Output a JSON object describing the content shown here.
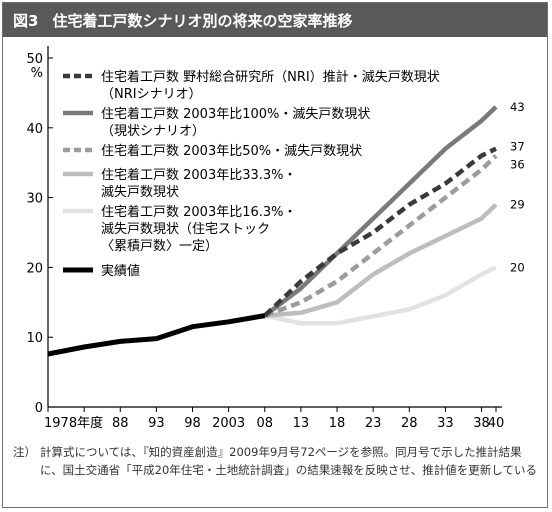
{
  "figure": {
    "number": "図3",
    "title": "住宅着工戸数シナリオ別の将来の空家率推移"
  },
  "chart_data": {
    "type": "line",
    "y_unit": "%",
    "ylim": [
      0,
      50
    ],
    "yticks": [
      0,
      10,
      20,
      30,
      40,
      50
    ],
    "categories": [
      "1978年度",
      "88",
      "93",
      "98",
      "2003",
      "08",
      "13",
      "18",
      "23",
      "28",
      "33",
      "38",
      "40"
    ],
    "x": [
      1978,
      1983,
      1988,
      1993,
      1998,
      2003,
      2008,
      2013,
      2018,
      2023,
      2028,
      2033,
      2038,
      2040
    ],
    "x_tick_years": [
      1978,
      1988,
      1993,
      1998,
      2003,
      2008,
      2013,
      2018,
      2023,
      2028,
      2033,
      2038,
      2040
    ],
    "grid": false,
    "legend_position": "top-left",
    "series": [
      {
        "name": "住宅着工戸数 野村総合研究所（NRI）推計・滅失戸数現状（NRIシナリオ）",
        "legend_lines": [
          "住宅着工戸数 野村総合研究所（NRI）推計・滅失戸数現状",
          "（NRIシナリオ）"
        ],
        "style": "dashed",
        "color": "#3a3a3a",
        "points": [
          [
            2008,
            13.1
          ],
          [
            2013,
            18.0
          ],
          [
            2018,
            22.0
          ],
          [
            2023,
            25.0
          ],
          [
            2028,
            29.0
          ],
          [
            2033,
            32.0
          ],
          [
            2038,
            36.0
          ],
          [
            2040,
            37.0
          ]
        ],
        "end_label": "37"
      },
      {
        "name": "住宅着工戸数 2003年比100%・滅失戸数現状（現状シナリオ）",
        "legend_lines": [
          "住宅着工戸数 2003年比100%・滅失戸数現状",
          "（現状シナリオ）"
        ],
        "style": "solid",
        "color": "#7a7a7a",
        "points": [
          [
            2008,
            13.1
          ],
          [
            2013,
            17.0
          ],
          [
            2018,
            22.0
          ],
          [
            2023,
            27.0
          ],
          [
            2028,
            32.0
          ],
          [
            2033,
            37.0
          ],
          [
            2038,
            41.0
          ],
          [
            2040,
            43.0
          ]
        ],
        "end_label": "43"
      },
      {
        "name": "住宅着工戸数 2003年比50%・滅失戸数現状",
        "legend_lines": [
          "住宅着工戸数 2003年比50%・滅失戸数現状"
        ],
        "style": "dashed",
        "color": "#9c9c9c",
        "points": [
          [
            2008,
            13.1
          ],
          [
            2013,
            15.0
          ],
          [
            2018,
            18.0
          ],
          [
            2023,
            22.0
          ],
          [
            2028,
            26.0
          ],
          [
            2033,
            30.0
          ],
          [
            2038,
            34.0
          ],
          [
            2040,
            36.0
          ]
        ],
        "end_label": "36"
      },
      {
        "name": "住宅着工戸数 2003年比33.3%・滅失戸数現状",
        "legend_lines": [
          "住宅着工戸数 2003年比33.3%・",
          "滅失戸数現状"
        ],
        "style": "solid",
        "color": "#bdbdbd",
        "points": [
          [
            2008,
            13.1
          ],
          [
            2013,
            13.5
          ],
          [
            2018,
            15.0
          ],
          [
            2023,
            19.0
          ],
          [
            2028,
            22.0
          ],
          [
            2033,
            24.5
          ],
          [
            2038,
            27.0
          ],
          [
            2040,
            29.0
          ]
        ],
        "end_label": "29"
      },
      {
        "name": "住宅着工戸数 2003年比16.3%・滅失戸数現状（住宅ストック〈累積戸数〉一定）",
        "legend_lines": [
          "住宅着工戸数 2003年比16.3%・",
          "滅失戸数現状（住宅ストック",
          "〈累積戸数〉一定）"
        ],
        "style": "solid",
        "color": "#e2e2e2",
        "points": [
          [
            2008,
            13.1
          ],
          [
            2013,
            12.0
          ],
          [
            2018,
            12.0
          ],
          [
            2023,
            13.0
          ],
          [
            2028,
            14.0
          ],
          [
            2033,
            16.0
          ],
          [
            2038,
            19.0
          ],
          [
            2040,
            20.0
          ]
        ],
        "end_label": "20"
      },
      {
        "name": "実績値",
        "legend_lines": [
          "実績値"
        ],
        "style": "solid",
        "color": "#000000",
        "points": [
          [
            1978,
            7.6
          ],
          [
            1983,
            8.6
          ],
          [
            1988,
            9.4
          ],
          [
            1993,
            9.8
          ],
          [
            1998,
            11.5
          ],
          [
            2003,
            12.2
          ],
          [
            2008,
            13.1
          ]
        ],
        "end_label": ""
      }
    ]
  },
  "note": {
    "label": "注）",
    "text": "計算式については、『知的資産創造』2009年9月号72ページを参照。同月号で示した推計結果に、国土交通省「平成20年住宅・土地統計調査」の結果速報を反映させ、推計値を更新している"
  }
}
